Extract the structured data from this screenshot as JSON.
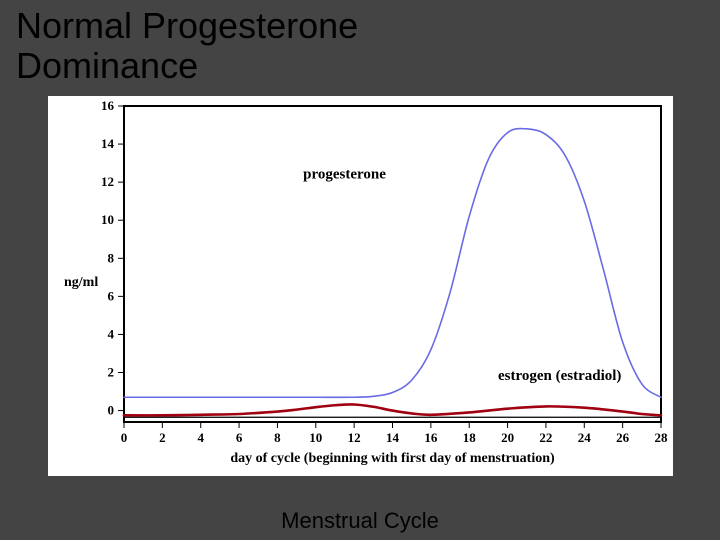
{
  "title": "Normal Progesterone\nDominance",
  "caption": "Menstrual Cycle",
  "chart": {
    "type": "line",
    "background_color": "#ffffff",
    "plot_border_color": "#000000",
    "plot_border_width": 2,
    "xlabel": "day of cycle (beginning with first day of menstruation)",
    "ylabel": "ng/ml",
    "label_fontsize": 14,
    "tick_fontsize": 13,
    "tick_fontweight": "bold",
    "xlim": [
      0,
      28
    ],
    "ylim": [
      -0.6,
      16
    ],
    "xticks": [
      0,
      2,
      4,
      6,
      8,
      10,
      12,
      14,
      16,
      18,
      20,
      22,
      24,
      26,
      28
    ],
    "yticks": [
      0,
      2,
      4,
      6,
      8,
      10,
      12,
      14,
      16
    ],
    "tick_color": "#000000",
    "series": {
      "progesterone": {
        "label": "progesterone",
        "label_xy": [
          11.5,
          12.2
        ],
        "color": "#6a6ae6",
        "line_width": 1.6,
        "x": [
          0,
          2,
          4,
          6,
          8,
          10,
          12,
          13,
          14,
          15,
          16,
          17,
          18,
          19,
          20,
          21,
          22,
          23,
          24,
          25,
          26,
          27,
          28
        ],
        "y": [
          0.7,
          0.7,
          0.7,
          0.7,
          0.7,
          0.7,
          0.7,
          0.75,
          0.95,
          1.6,
          3.2,
          6.2,
          10.2,
          13.2,
          14.6,
          14.8,
          14.5,
          13.4,
          11.0,
          7.4,
          3.6,
          1.4,
          0.7
        ]
      },
      "estrogen": {
        "label": "estrogen (estradiol)",
        "label_xy": [
          19.5,
          1.6
        ],
        "color": "#a00010",
        "line_width": 2.6,
        "x": [
          0,
          2,
          4,
          6,
          8,
          9,
          10,
          11,
          12,
          13,
          14,
          15,
          16,
          18,
          20,
          22,
          24,
          26,
          27,
          28
        ],
        "y": [
          -0.25,
          -0.25,
          -0.22,
          -0.18,
          -0.05,
          0.05,
          0.18,
          0.28,
          0.32,
          0.2,
          0.0,
          -0.15,
          -0.22,
          -0.1,
          0.1,
          0.22,
          0.15,
          -0.05,
          -0.18,
          -0.25
        ]
      },
      "zero_ref": {
        "color": "#000000",
        "line_width": 1.2,
        "x": [
          0,
          28
        ],
        "y": [
          -0.35,
          -0.35
        ]
      }
    }
  }
}
